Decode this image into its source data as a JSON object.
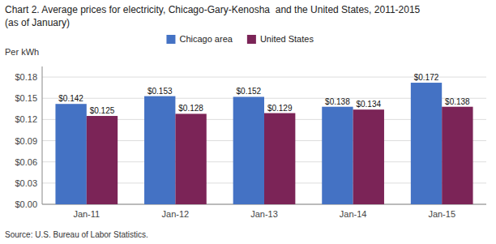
{
  "chart_data": {
    "type": "bar",
    "title": "Chart 2. Average prices for electricity, Chicago-Gary-Kenosha  and the United States, 2011-2015",
    "subtitle": "(as of January)",
    "y_label": "Per kWh",
    "annotations": [
      "Source: U.S. Bureau of Labor Statistics."
    ],
    "categories": [
      "Jan-11",
      "Jan-12",
      "Jan-13",
      "Jan-14",
      "Jan-15"
    ],
    "series": [
      {
        "name": "Chicago area",
        "color": "#4472C4",
        "values": [
          0.142,
          0.153,
          0.152,
          0.138,
          0.172
        ],
        "value_labels": [
          "$0.142",
          "$0.153",
          "$0.152",
          "$0.138",
          "$0.172"
        ]
      },
      {
        "name": "United States",
        "color": "#7B2457",
        "values": [
          0.125,
          0.128,
          0.129,
          0.134,
          0.138
        ],
        "value_labels": [
          "$0.125",
          "$0.128",
          "$0.129",
          "$0.134",
          "$0.138"
        ]
      }
    ],
    "ylim": [
      0,
      0.195
    ],
    "yticks": [
      {
        "value": 0.0,
        "label": "$0.00"
      },
      {
        "value": 0.03,
        "label": "$0.03"
      },
      {
        "value": 0.06,
        "label": "$0.06"
      },
      {
        "value": 0.09,
        "label": "$0.09"
      },
      {
        "value": 0.12,
        "label": "$0.12"
      },
      {
        "value": 0.15,
        "label": "$0.15"
      },
      {
        "value": 0.18,
        "label": "$0.18"
      }
    ],
    "grid": true,
    "legend": "top",
    "data_labels": true
  }
}
